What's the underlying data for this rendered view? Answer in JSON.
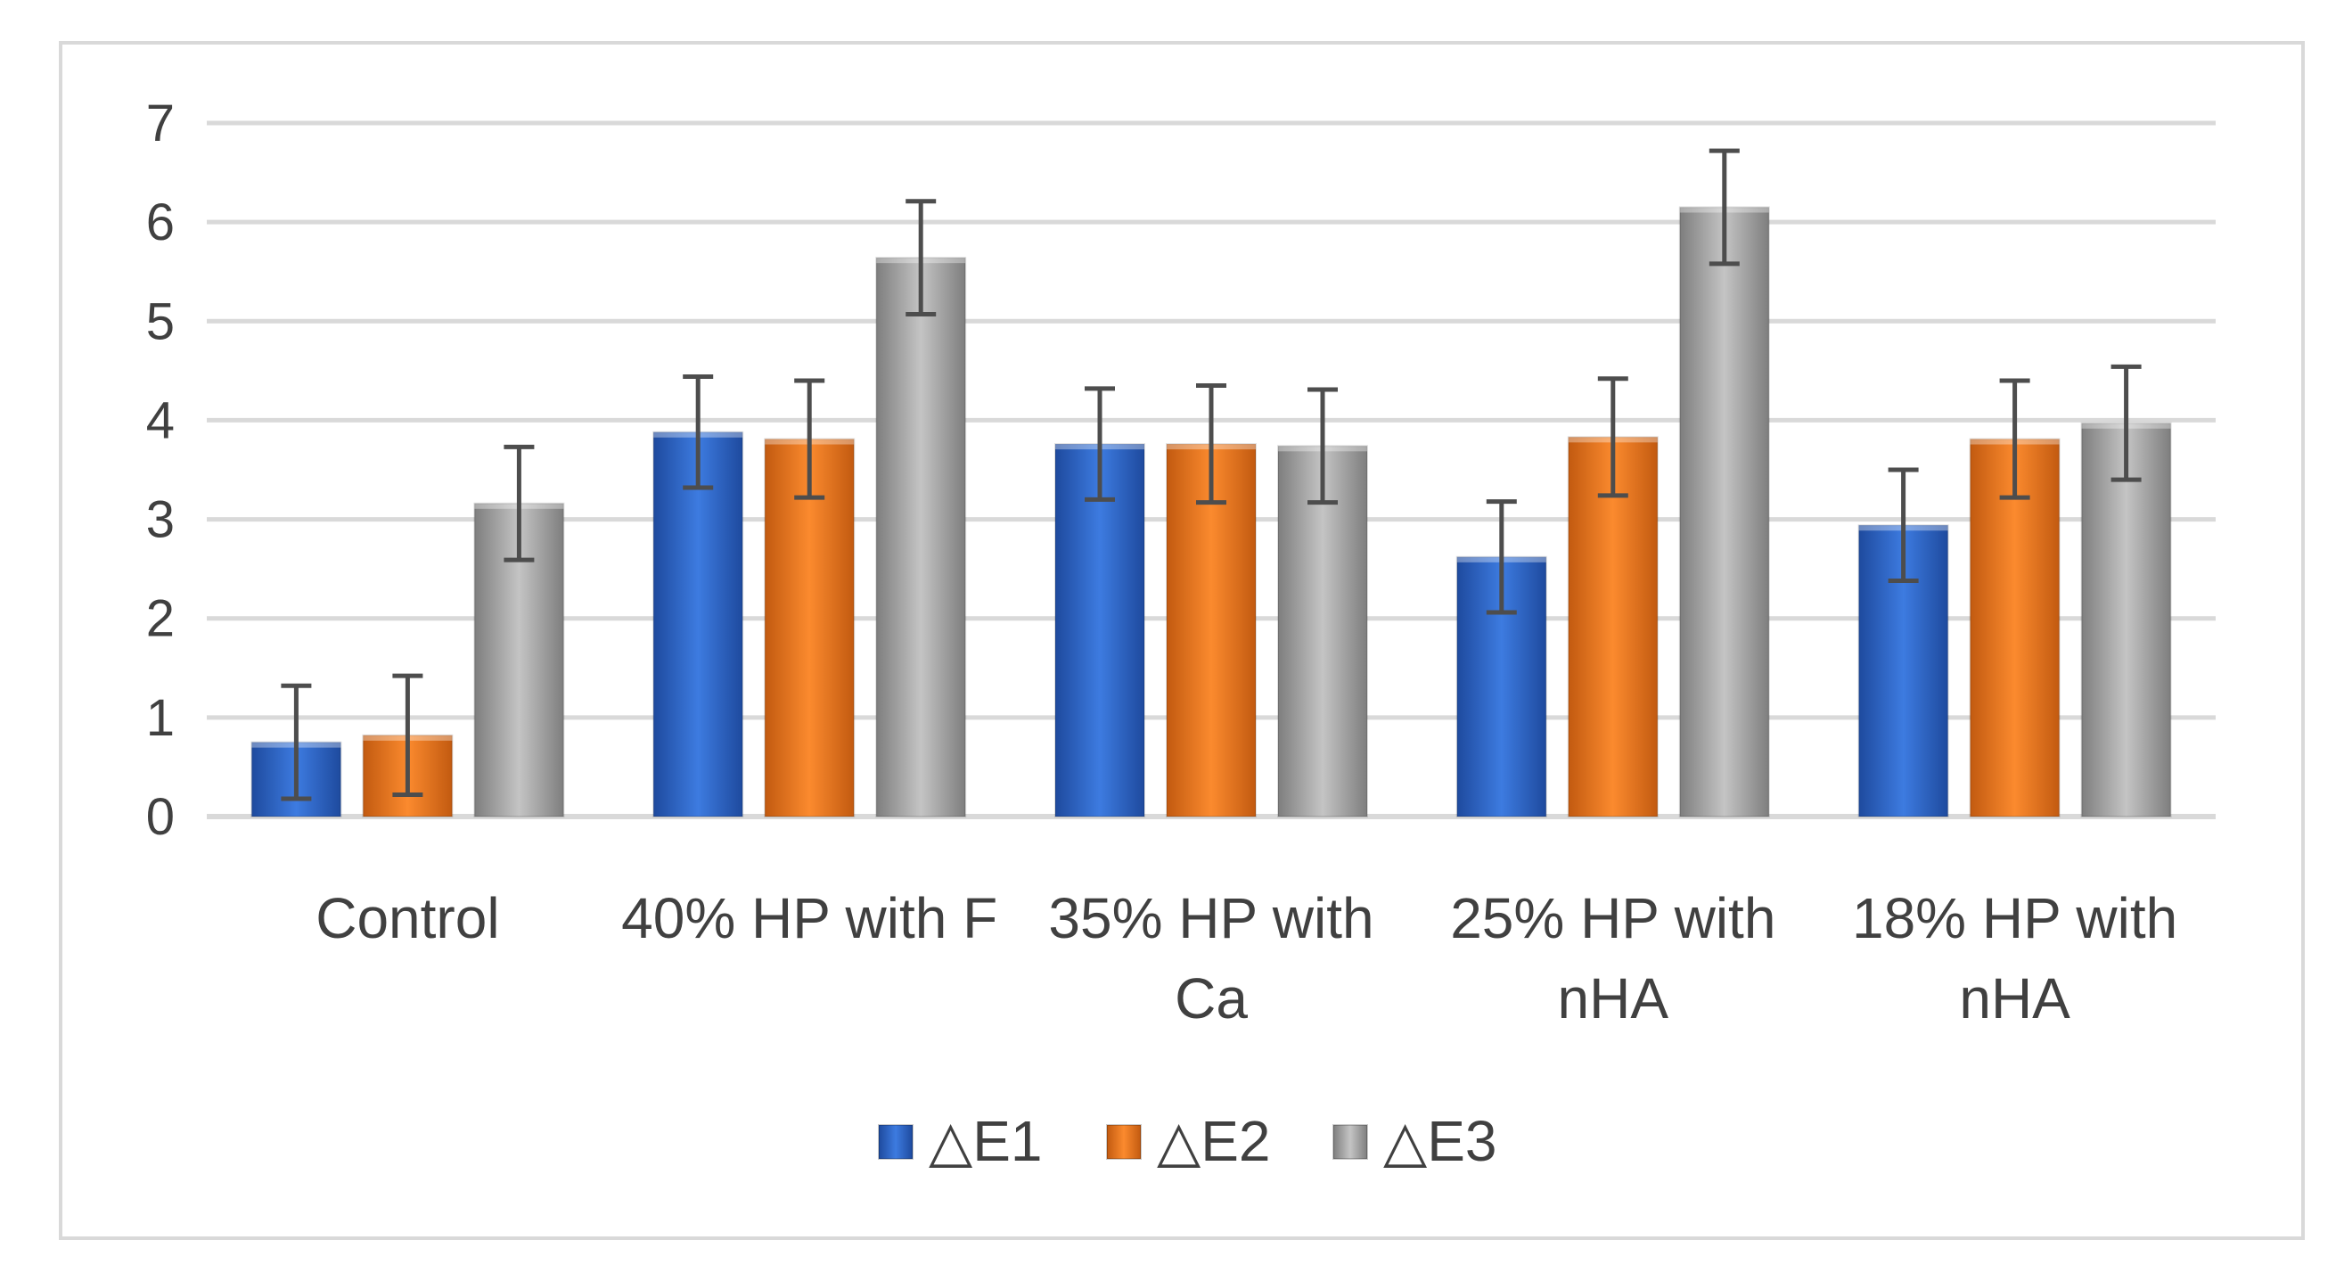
{
  "chart_data": {
    "type": "bar",
    "title": "",
    "xlabel": "",
    "ylabel": "",
    "ylim": [
      0,
      7
    ],
    "yticks": [
      0,
      1,
      2,
      3,
      4,
      5,
      6,
      7
    ],
    "grid": true,
    "legend_position": "bottom",
    "categories": [
      [
        "Control"
      ],
      [
        "40% HP with F"
      ],
      [
        "35% HP with",
        "Ca"
      ],
      [
        "25% HP with",
        "nHA"
      ],
      [
        "18% HP with",
        "nHA"
      ]
    ],
    "series": [
      {
        "name": "△E1",
        "color": "#2e62c8",
        "values": [
          0.75,
          3.88,
          3.76,
          2.62,
          2.94
        ],
        "errors": [
          0.57,
          0.56,
          0.56,
          0.56,
          0.56
        ]
      },
      {
        "name": "△E2",
        "color": "#e8701c",
        "values": [
          0.82,
          3.81,
          3.76,
          3.83,
          3.81
        ],
        "errors": [
          0.6,
          0.59,
          0.59,
          0.59,
          0.59
        ]
      },
      {
        "name": "△E3",
        "color": "#a5a5a5",
        "values": [
          3.16,
          5.64,
          3.74,
          6.15,
          3.97
        ],
        "errors": [
          0.57,
          0.57,
          0.57,
          0.57,
          0.57
        ]
      }
    ]
  }
}
